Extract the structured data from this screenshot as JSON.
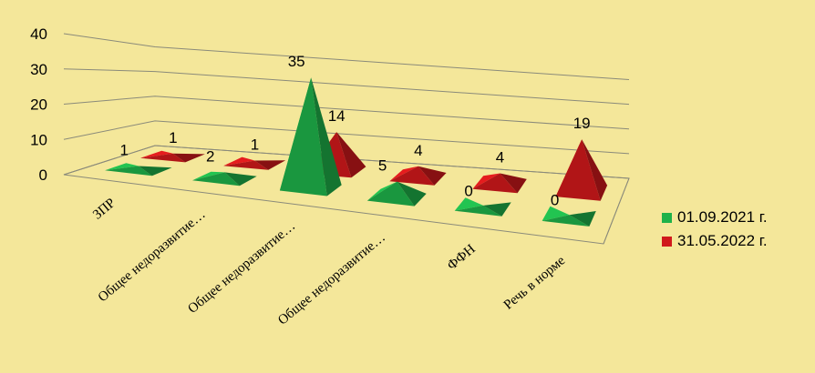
{
  "chart_data": {
    "type": "bar",
    "style": "3d-pyramid",
    "categories": [
      "ЗПР",
      "Общее недоразвитие…",
      "Общее недоразвитие…",
      "Общее недоразвитие…",
      "ФФН",
      "Речь в норме"
    ],
    "series": [
      {
        "name": "01.09.2021 г.",
        "values": [
          1,
          2,
          35,
          5,
          0,
          0
        ],
        "color": "#1fb24a"
      },
      {
        "name": "31.05.2022 г.",
        "values": [
          1,
          1,
          14,
          4,
          4,
          19
        ],
        "color": "#d0191b"
      }
    ],
    "ylim": [
      0,
      40
    ],
    "yticks": [
      0,
      10,
      20,
      30,
      40
    ],
    "grid": true,
    "legend_position": "right",
    "background": "#f4e79a"
  }
}
